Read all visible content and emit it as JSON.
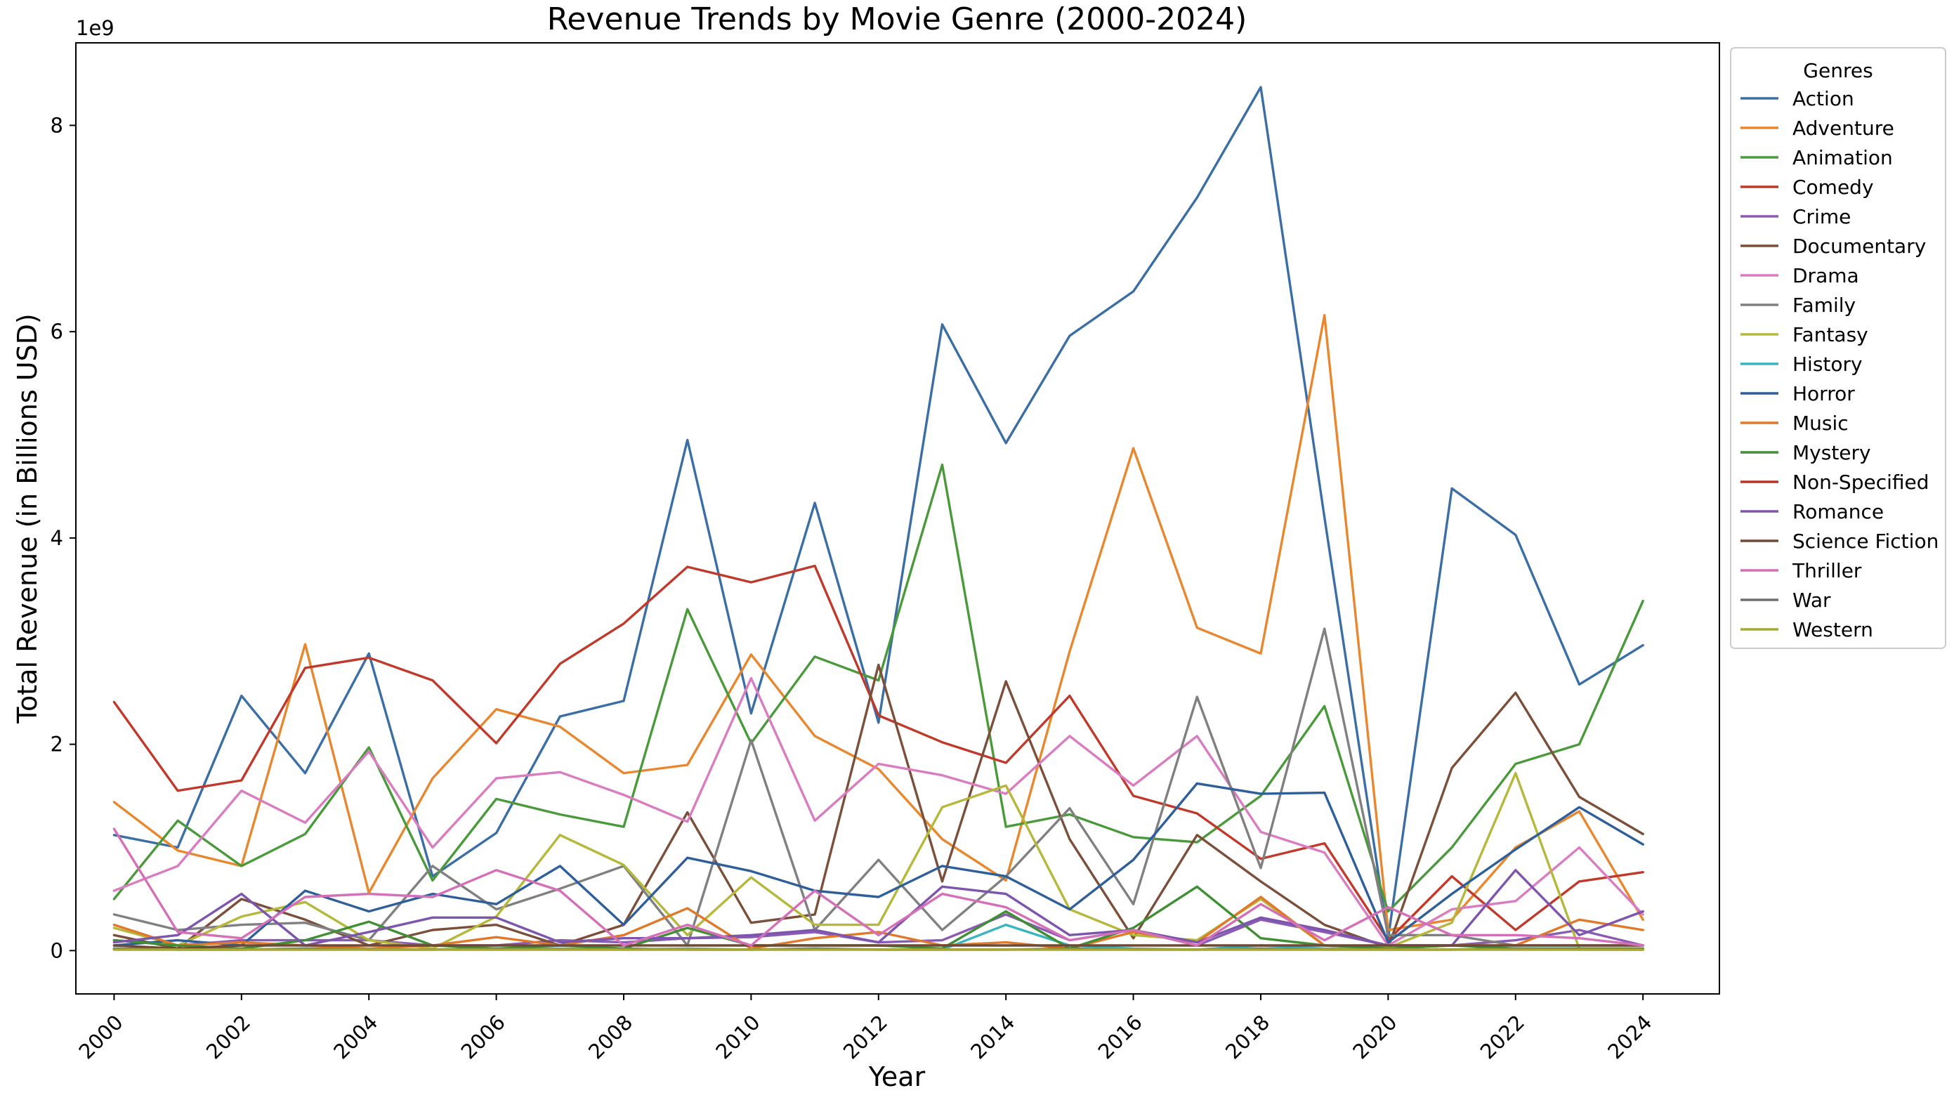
{
  "chart_data": {
    "type": "line",
    "title": "Revenue Trends by Movie Genre (2000-2024)",
    "xlabel": "Year",
    "ylabel": "Total Revenue (in Billions USD)",
    "y_offset_label": "1e9",
    "x_ticks": [
      2000,
      2002,
      2004,
      2006,
      2008,
      2010,
      2012,
      2014,
      2016,
      2018,
      2020,
      2022,
      2024
    ],
    "y_ticks": [
      0,
      2,
      4,
      6,
      8
    ],
    "xlim": [
      1999.4,
      2025.2
    ],
    "ylim": [
      -0.42,
      8.8
    ],
    "legend_title": "Genres",
    "legend_position": "outside-right",
    "x": [
      2000,
      2001,
      2002,
      2003,
      2004,
      2005,
      2006,
      2007,
      2008,
      2009,
      2010,
      2011,
      2012,
      2013,
      2014,
      2015,
      2016,
      2017,
      2018,
      2019,
      2020,
      2021,
      2022,
      2023,
      2024
    ],
    "series": [
      {
        "name": "Action",
        "color": "#3a6ea5",
        "values": [
          1.12,
          1.0,
          2.47,
          1.72,
          2.88,
          0.72,
          1.14,
          2.27,
          2.42,
          4.95,
          2.3,
          4.34,
          2.21,
          6.07,
          4.92,
          5.96,
          6.39,
          7.3,
          8.37,
          4.2,
          0.12,
          4.48,
          4.03,
          2.58,
          2.96
        ]
      },
      {
        "name": "Adventure",
        "color": "#e8872e",
        "values": [
          1.44,
          0.97,
          0.82,
          2.97,
          0.56,
          1.67,
          2.34,
          2.17,
          1.72,
          1.8,
          2.87,
          2.08,
          1.76,
          1.08,
          0.68,
          2.9,
          4.87,
          3.13,
          2.88,
          6.16,
          0.2,
          0.3,
          1.0,
          1.35,
          0.3
        ]
      },
      {
        "name": "Animation",
        "color": "#4a9a3c",
        "values": [
          0.5,
          1.26,
          0.82,
          1.13,
          1.97,
          0.68,
          1.47,
          1.32,
          1.2,
          3.31,
          2.01,
          2.85,
          2.62,
          4.71,
          1.2,
          1.32,
          1.1,
          1.05,
          1.5,
          2.37,
          0.38,
          1.0,
          1.81,
          2.0,
          3.39
        ]
      },
      {
        "name": "Comedy",
        "color": "#c0392b",
        "values": [
          2.41,
          1.55,
          1.65,
          2.74,
          2.84,
          2.62,
          2.01,
          2.78,
          3.17,
          3.72,
          3.57,
          3.73,
          2.28,
          2.02,
          1.82,
          2.47,
          1.5,
          1.33,
          0.89,
          1.04,
          0.1,
          0.72,
          0.2,
          0.67,
          0.76
        ]
      },
      {
        "name": "Crime",
        "color": "#8a5bb5",
        "values": [
          0.1,
          0.05,
          0.1,
          0.1,
          0.1,
          0.05,
          0.05,
          0.1,
          0.08,
          0.12,
          0.13,
          0.18,
          0.08,
          0.1,
          0.35,
          0.1,
          0.2,
          0.05,
          0.3,
          0.18,
          0.05,
          0.05,
          0.1,
          0.2,
          0.05
        ]
      },
      {
        "name": "Documentary",
        "color": "#7b4f3a",
        "values": [
          0.15,
          0.02,
          0.5,
          0.3,
          0.05,
          0.2,
          0.25,
          0.05,
          0.25,
          1.34,
          0.27,
          0.35,
          2.77,
          0.67,
          2.61,
          1.08,
          0.12,
          1.12,
          0.67,
          0.25,
          0.03,
          1.77,
          2.5,
          1.49,
          1.13
        ]
      },
      {
        "name": "Drama",
        "color": "#d97cc0",
        "values": [
          0.58,
          0.82,
          1.55,
          1.24,
          1.93,
          1.0,
          1.67,
          1.73,
          1.51,
          1.25,
          2.64,
          1.26,
          1.81,
          1.7,
          1.52,
          2.08,
          1.6,
          2.08,
          1.15,
          0.95,
          0.05,
          0.4,
          0.48,
          1.0,
          0.35
        ]
      },
      {
        "name": "Family",
        "color": "#808080",
        "values": [
          0.35,
          0.2,
          0.25,
          0.27,
          0.1,
          0.82,
          0.4,
          0.6,
          0.82,
          0.05,
          2.04,
          0.2,
          0.88,
          0.2,
          0.72,
          1.38,
          0.45,
          2.46,
          0.8,
          3.12,
          0.15,
          0.15,
          0.05,
          0.05,
          0.05
        ]
      },
      {
        "name": "Fantasy",
        "color": "#b5b83a",
        "values": [
          0.22,
          0.05,
          0.33,
          0.47,
          0.1,
          0.02,
          0.33,
          1.12,
          0.83,
          0.15,
          0.71,
          0.25,
          0.25,
          1.39,
          1.6,
          0.4,
          0.15,
          0.1,
          0.5,
          0.05,
          0.03,
          0.27,
          1.72,
          0.02,
          0.02
        ]
      },
      {
        "name": "History",
        "color": "#3ab5c0",
        "values": [
          0.02,
          0.01,
          0.01,
          0.02,
          0.01,
          0.01,
          0.02,
          0.02,
          0.01,
          0.02,
          0.01,
          0.02,
          0.01,
          0.01,
          0.25,
          0.05,
          0.02,
          0.01,
          0.05,
          0.02,
          0.01,
          0.01,
          0.02,
          0.02,
          0.01
        ]
      },
      {
        "name": "Horror",
        "color": "#2f5f9a",
        "values": [
          0.05,
          0.1,
          0.05,
          0.58,
          0.38,
          0.55,
          0.45,
          0.82,
          0.25,
          0.9,
          0.77,
          0.58,
          0.52,
          0.82,
          0.72,
          0.4,
          0.88,
          1.62,
          1.52,
          1.53,
          0.08,
          0.55,
          0.98,
          1.39,
          1.03
        ]
      },
      {
        "name": "Music",
        "color": "#e07a2a",
        "values": [
          0.25,
          0.05,
          0.08,
          0.05,
          0.02,
          0.05,
          0.13,
          0.05,
          0.15,
          0.41,
          0.02,
          0.12,
          0.18,
          0.05,
          0.08,
          0.02,
          0.18,
          0.08,
          0.52,
          0.05,
          0.02,
          0.05,
          0.05,
          0.3,
          0.2
        ]
      },
      {
        "name": "Mystery",
        "color": "#3f8f34",
        "values": [
          0.1,
          0.05,
          0.02,
          0.1,
          0.28,
          0.05,
          0.02,
          0.05,
          0.02,
          0.22,
          0.05,
          0.05,
          0.05,
          0.02,
          0.38,
          0.02,
          0.22,
          0.62,
          0.12,
          0.05,
          0.02,
          0.05,
          0.02,
          0.02,
          0.02
        ]
      },
      {
        "name": "Non-Specified",
        "color": "#b83228",
        "values": [
          0.01,
          0.01,
          0.01,
          0.01,
          0.01,
          0.01,
          0.01,
          0.01,
          0.01,
          0.01,
          0.01,
          0.01,
          0.01,
          0.01,
          0.01,
          0.01,
          0.01,
          0.01,
          0.01,
          0.01,
          0.01,
          0.01,
          0.01,
          0.01,
          0.01
        ]
      },
      {
        "name": "Romance",
        "color": "#7d55ad",
        "values": [
          0.08,
          0.15,
          0.55,
          0.05,
          0.18,
          0.32,
          0.32,
          0.08,
          0.12,
          0.12,
          0.15,
          0.2,
          0.08,
          0.62,
          0.55,
          0.15,
          0.2,
          0.08,
          0.32,
          0.2,
          0.05,
          0.05,
          0.78,
          0.15,
          0.38
        ]
      },
      {
        "name": "Science Fiction",
        "color": "#6e4a36",
        "values": [
          0.05,
          0.02,
          0.05,
          0.05,
          0.05,
          0.05,
          0.05,
          0.05,
          0.05,
          0.05,
          0.05,
          0.05,
          0.05,
          0.05,
          0.05,
          0.05,
          0.05,
          0.05,
          0.05,
          0.05,
          0.05,
          0.05,
          0.05,
          0.05,
          0.05
        ]
      },
      {
        "name": "Thriller",
        "color": "#d46fb8",
        "values": [
          1.18,
          0.18,
          0.12,
          0.52,
          0.55,
          0.52,
          0.78,
          0.58,
          0.05,
          0.25,
          0.05,
          0.58,
          0.15,
          0.55,
          0.42,
          0.1,
          0.2,
          0.05,
          0.45,
          0.1,
          0.42,
          0.15,
          0.15,
          0.12,
          0.05
        ]
      },
      {
        "name": "War",
        "color": "#6f6f6f",
        "values": [
          0.02,
          0.01,
          0.01,
          0.02,
          0.01,
          0.01,
          0.02,
          0.01,
          0.02,
          0.01,
          0.01,
          0.02,
          0.01,
          0.01,
          0.01,
          0.02,
          0.01,
          0.01,
          0.02,
          0.01,
          0.01,
          0.01,
          0.02,
          0.01,
          0.01
        ]
      },
      {
        "name": "Western",
        "color": "#a8aa30",
        "values": [
          0.01,
          0.01,
          0.01,
          0.01,
          0.01,
          0.01,
          0.01,
          0.01,
          0.01,
          0.01,
          0.01,
          0.01,
          0.01,
          0.01,
          0.01,
          0.01,
          0.01,
          0.01,
          0.01,
          0.01,
          0.01,
          0.01,
          0.01,
          0.01,
          0.01
        ]
      }
    ]
  }
}
